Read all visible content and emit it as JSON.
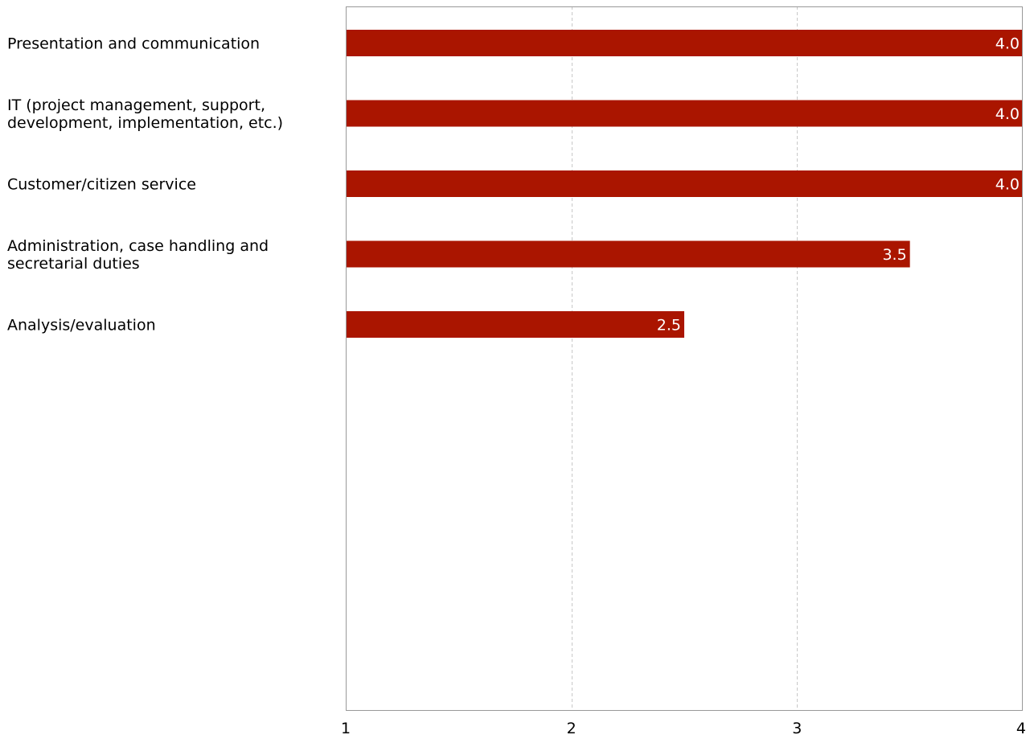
{
  "chart_data": {
    "type": "bar",
    "orientation": "horizontal",
    "categories": [
      [
        "Presentation and communication"
      ],
      [
        "IT (project management, support,",
        "development, implementation, etc.)"
      ],
      [
        "Customer/citizen service"
      ],
      [
        "Administration, case handling and",
        "secretarial duties"
      ],
      [
        "Analysis/evaluation"
      ]
    ],
    "values": [
      4.0,
      4.0,
      4.0,
      3.5,
      2.5
    ],
    "value_labels": [
      "4.0",
      "4.0",
      "4.0",
      "3.5",
      "2.5"
    ],
    "xlim": [
      1,
      4
    ],
    "xticks": [
      1,
      2,
      3,
      4
    ],
    "xtick_labels": [
      "1",
      "2",
      "3",
      "4"
    ],
    "grid": "vertical dashed",
    "legend": "none",
    "colors": {
      "bar": "#aa1500",
      "grid": "#c8c8c8",
      "frame": "#999999"
    }
  }
}
